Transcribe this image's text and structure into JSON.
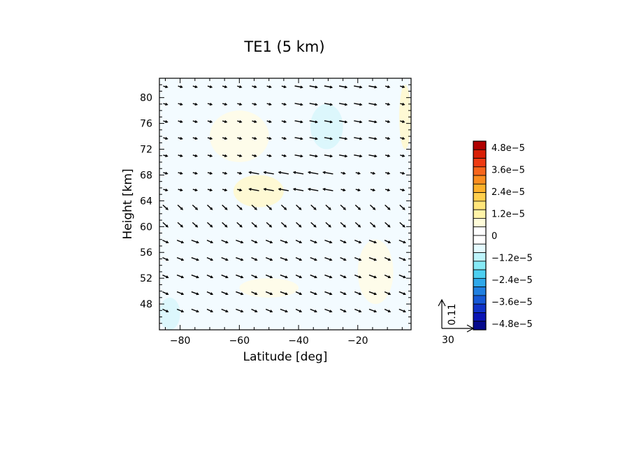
{
  "chart_data": {
    "type": "contour-vector",
    "title": "TE1 (5 km)",
    "xlabel": "Latitude [deg]",
    "ylabel": "Height [km]",
    "xlim": [
      -87,
      -2
    ],
    "ylim": [
      44,
      83
    ],
    "x_ticks": [
      -80,
      -60,
      -40,
      -20
    ],
    "x_tick_labels": [
      "−80",
      "−60",
      "−40",
      "−20"
    ],
    "y_ticks": [
      48,
      52,
      56,
      60,
      64,
      68,
      72,
      76,
      80
    ],
    "y_tick_labels": [
      "48",
      "52",
      "56",
      "60",
      "64",
      "68",
      "72",
      "76",
      "80"
    ],
    "colorbar": {
      "labels": [
        "4.8e−5",
        "3.6e−5",
        "2.4e−5",
        "1.2e−5",
        "0",
        "−1.2e−5",
        "−2.4e−5",
        "−3.6e−5",
        "−4.8e−5"
      ],
      "label_values": [
        4.8e-05,
        3.6e-05,
        2.4e-05,
        1.2e-05,
        0,
        -1.2e-05,
        -2.4e-05,
        -3.6e-05,
        -4.8e-05
      ],
      "colors_top_to_bottom": [
        "#b00000",
        "#d81e05",
        "#ee3a12",
        "#f7651b",
        "#fb8d1f",
        "#fdb12a",
        "#ffcf4d",
        "#ffe57a",
        "#fff3a8",
        "#fffcd9",
        "#ffffff",
        "#ffffff",
        "#e4fbff",
        "#bdf4fb",
        "#86e9f5",
        "#4dcff0",
        "#2ea8ea",
        "#1f7fe0",
        "#1558d6",
        "#0f32c8",
        "#0a14b4",
        "#060a8c"
      ]
    },
    "reference_vector": {
      "x_label": "30",
      "y_label": "0.11"
    },
    "vector_field": {
      "lat": [
        -85,
        -80,
        -75,
        -70,
        -65,
        -60,
        -55,
        -50,
        -45,
        -40,
        -35,
        -30,
        -25,
        -20,
        -15,
        -10,
        -5
      ],
      "height": [
        47,
        49.7,
        52.3,
        55,
        57.7,
        60.3,
        63,
        65.7,
        68.3,
        71,
        73.7,
        76.3,
        79,
        81.7
      ],
      "note": "short mostly zonal arrows; strongest westward near 64–69 km between -55 and -30 deg"
    },
    "shading": {
      "background": "#f3fbff",
      "regions": [
        {
          "sign": "positive",
          "lat": [
            -62,
            -45
          ],
          "height": [
            63,
            68
          ],
          "level": 1.2e-05
        },
        {
          "sign": "positive",
          "lat": [
            -6,
            -2
          ],
          "height": [
            72,
            82
          ],
          "level": 1.2e-05
        },
        {
          "sign": "negative",
          "lat": [
            -36,
            -25
          ],
          "height": [
            72,
            79
          ],
          "level": -1.2e-05
        },
        {
          "sign": "negative",
          "lat": [
            -87,
            -80
          ],
          "height": [
            44,
            49
          ],
          "level": -1.2e-05
        }
      ]
    }
  }
}
